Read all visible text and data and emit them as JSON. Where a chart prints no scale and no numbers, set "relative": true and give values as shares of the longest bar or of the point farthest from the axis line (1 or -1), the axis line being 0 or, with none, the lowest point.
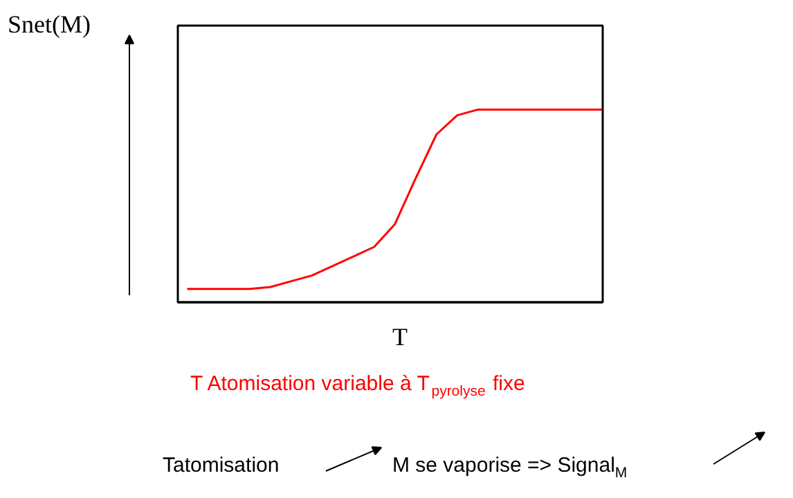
{
  "chart_data": {
    "type": "line",
    "relative": true,
    "color": "#ff0000",
    "ylabel": "Snet(M)",
    "xlabel": "T",
    "categories": [
      null,
      null,
      null,
      null,
      null,
      null,
      null,
      null,
      null,
      null,
      null,
      null,
      null,
      null,
      null,
      null,
      null,
      null,
      null,
      null,
      null
    ],
    "values": [
      0.06,
      0.06,
      0.06,
      0.06,
      0.07,
      0.1,
      0.13,
      0.18,
      0.23,
      0.28,
      0.4,
      0.64,
      0.87,
      0.97,
      1,
      1,
      1,
      1,
      1,
      1,
      1
    ],
    "annotations": [
      "T Atomisation variable à T$_{pyrolyse}$ fixe",
      "Tatomisation",
      "M se vaporise => Signal$_{M}$"
    ]
  }
}
